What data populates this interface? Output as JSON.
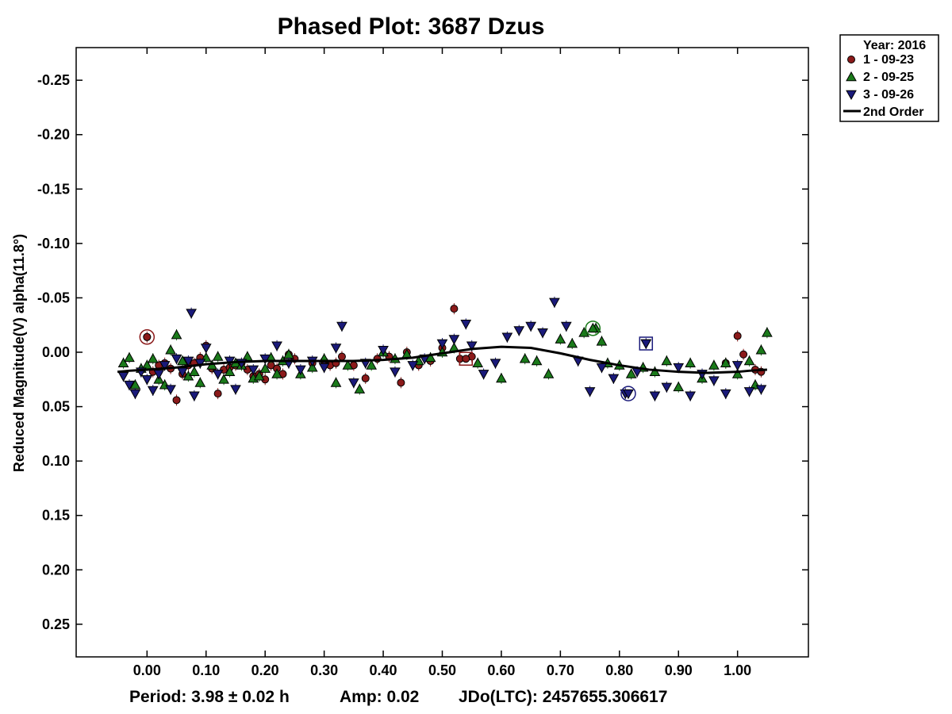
{
  "chart_data": {
    "type": "scatter",
    "title": "Phased Plot: 3687 Dzus",
    "xlabel": "",
    "ylabel": "Reduced Magnitude(V) alpha(11.8°)",
    "xlim": [
      -0.12,
      1.12
    ],
    "ylim": [
      0.28,
      -0.28
    ],
    "y_inverted": true,
    "x_ticks": [
      "0.00",
      "0.10",
      "0.20",
      "0.30",
      "0.40",
      "0.50",
      "0.60",
      "0.70",
      "0.80",
      "0.90",
      "1.00"
    ],
    "y_ticks": [
      "-0.25",
      "-0.20",
      "-0.15",
      "-0.10",
      "-0.05",
      "0.00",
      "0.05",
      "0.10",
      "0.15",
      "0.20",
      "0.25"
    ],
    "grid": false,
    "legend_position": "outside-top-right",
    "legend_title": "Year: 2016",
    "footer": {
      "period": "Period: 3.98 ± 0.02 h",
      "amp": "Amp: 0.02",
      "jdo": "JDo(LTC): 2457655.306617"
    },
    "series": [
      {
        "name": "1 - 09-23",
        "marker": "circle",
        "color": "#8b1a1a",
        "x": [
          0.0,
          0.01,
          0.02,
          0.03,
          0.04,
          0.05,
          0.06,
          0.07,
          0.08,
          0.09,
          0.1,
          0.11,
          0.12,
          0.13,
          0.14,
          0.15,
          0.16,
          0.17,
          0.18,
          0.19,
          0.2,
          0.21,
          0.22,
          0.23,
          0.24,
          0.25,
          0.28,
          0.3,
          0.31,
          0.32,
          0.33,
          0.35,
          0.37,
          0.39,
          0.41,
          0.43,
          0.44,
          0.46,
          0.48,
          0.5,
          0.52,
          0.53,
          0.55,
          0.98,
          1.0,
          1.01,
          1.03,
          1.04
        ],
        "y": [
          -0.014,
          0.018,
          0.012,
          0.01,
          0.015,
          0.044,
          0.02,
          0.012,
          0.01,
          0.005,
          -0.006,
          0.015,
          0.038,
          0.016,
          0.014,
          0.012,
          0.01,
          0.016,
          0.022,
          0.02,
          0.025,
          0.012,
          0.015,
          0.02,
          0.002,
          0.006,
          0.01,
          0.008,
          0.012,
          0.01,
          0.004,
          0.012,
          0.024,
          0.006,
          0.004,
          0.028,
          0.0,
          0.012,
          0.008,
          -0.004,
          -0.04,
          0.006,
          0.004,
          0.01,
          -0.015,
          0.002,
          0.016,
          0.018
        ]
      },
      {
        "name": "2 - 09-25",
        "marker": "triangle-up",
        "color": "#1a7a1a",
        "x": [
          -0.04,
          -0.03,
          -0.02,
          -0.01,
          0.0,
          0.01,
          0.02,
          0.03,
          0.04,
          0.05,
          0.06,
          0.07,
          0.08,
          0.09,
          0.1,
          0.11,
          0.12,
          0.13,
          0.14,
          0.15,
          0.16,
          0.17,
          0.18,
          0.19,
          0.2,
          0.21,
          0.22,
          0.23,
          0.24,
          0.26,
          0.28,
          0.3,
          0.32,
          0.34,
          0.36,
          0.38,
          0.4,
          0.42,
          0.44,
          0.46,
          0.48,
          0.5,
          0.52,
          0.56,
          0.6,
          0.64,
          0.66,
          0.68,
          0.7,
          0.72,
          0.74,
          0.76,
          0.77,
          0.78,
          0.8,
          0.82,
          0.84,
          0.86,
          0.88,
          0.9,
          0.92,
          0.94,
          0.96,
          0.98,
          1.0,
          1.02,
          1.03,
          1.04,
          1.05
        ],
        "y": [
          0.01,
          0.005,
          0.03,
          0.015,
          0.012,
          0.006,
          0.025,
          0.03,
          -0.002,
          -0.016,
          0.008,
          0.022,
          0.018,
          0.028,
          0.005,
          0.012,
          0.004,
          0.025,
          0.018,
          0.01,
          0.012,
          0.004,
          0.024,
          0.022,
          0.015,
          0.005,
          0.02,
          0.008,
          0.002,
          0.02,
          0.014,
          0.006,
          0.028,
          0.012,
          0.034,
          0.012,
          0.0,
          0.006,
          0.002,
          0.008,
          0.005,
          0.0,
          -0.004,
          0.01,
          0.024,
          0.006,
          0.008,
          0.02,
          -0.012,
          -0.008,
          -0.018,
          -0.022,
          -0.01,
          0.01,
          0.012,
          0.02,
          0.014,
          0.018,
          0.008,
          0.032,
          0.01,
          0.024,
          0.012,
          0.01,
          0.02,
          0.008,
          0.03,
          -0.002,
          -0.018
        ]
      },
      {
        "name": "3 - 09-26",
        "marker": "triangle-down",
        "color": "#1a1a7a",
        "x": [
          -0.04,
          -0.03,
          -0.02,
          -0.01,
          0.0,
          0.01,
          0.02,
          0.03,
          0.04,
          0.05,
          0.06,
          0.07,
          0.075,
          0.08,
          0.09,
          0.1,
          0.12,
          0.14,
          0.15,
          0.16,
          0.18,
          0.2,
          0.22,
          0.24,
          0.26,
          0.28,
          0.3,
          0.32,
          0.33,
          0.35,
          0.37,
          0.4,
          0.42,
          0.45,
          0.47,
          0.5,
          0.52,
          0.54,
          0.55,
          0.57,
          0.59,
          0.61,
          0.63,
          0.65,
          0.67,
          0.69,
          0.71,
          0.73,
          0.75,
          0.77,
          0.79,
          0.81,
          0.83,
          0.845,
          0.86,
          0.88,
          0.9,
          0.92,
          0.94,
          0.96,
          0.98,
          1.0,
          1.02,
          1.04
        ],
        "y": [
          0.022,
          0.03,
          0.038,
          0.018,
          0.025,
          0.035,
          0.02,
          0.012,
          0.034,
          0.006,
          0.018,
          0.008,
          -0.036,
          0.04,
          0.01,
          -0.004,
          0.02,
          0.008,
          0.034,
          0.01,
          0.016,
          0.006,
          -0.006,
          0.01,
          0.016,
          0.008,
          0.014,
          -0.004,
          -0.024,
          0.028,
          0.01,
          -0.002,
          0.018,
          0.012,
          0.006,
          -0.008,
          -0.012,
          -0.026,
          -0.006,
          0.02,
          0.01,
          -0.014,
          -0.02,
          -0.024,
          -0.018,
          -0.046,
          -0.024,
          0.008,
          0.036,
          0.014,
          0.024,
          0.038,
          0.018,
          -0.008,
          0.04,
          0.032,
          0.014,
          0.04,
          0.02,
          0.026,
          0.038,
          0.012,
          0.036,
          0.034
        ]
      }
    ],
    "fit": {
      "name": "2nd Order",
      "color": "#000000",
      "x": [
        -0.05,
        -0.03,
        0.0,
        0.05,
        0.1,
        0.15,
        0.2,
        0.25,
        0.3,
        0.35,
        0.4,
        0.45,
        0.5,
        0.55,
        0.6,
        0.65,
        0.7,
        0.75,
        0.8,
        0.85,
        0.9,
        0.95,
        1.0,
        1.02,
        1.05
      ],
      "y": [
        0.018,
        0.017,
        0.016,
        0.014,
        0.011,
        0.009,
        0.008,
        0.008,
        0.008,
        0.008,
        0.007,
        0.005,
        0.001,
        -0.003,
        -0.005,
        -0.004,
        0.001,
        0.007,
        0.012,
        0.016,
        0.018,
        0.019,
        0.018,
        0.017,
        0.016
      ]
    },
    "highlighted_points": [
      {
        "series": "1 - 09-23",
        "x": 0.0,
        "y": -0.014,
        "style": "ring"
      },
      {
        "series": "2 - 09-25",
        "x": 0.755,
        "y": -0.022,
        "style": "ring"
      },
      {
        "series": "3 - 09-26",
        "x": 0.815,
        "y": 0.038,
        "style": "ring"
      },
      {
        "series": "1 - 09-23",
        "x": 0.54,
        "y": 0.006,
        "style": "box"
      },
      {
        "series": "3 - 09-26",
        "x": 0.845,
        "y": -0.008,
        "style": "box"
      }
    ]
  }
}
